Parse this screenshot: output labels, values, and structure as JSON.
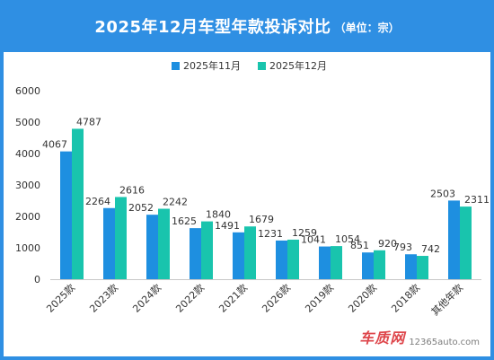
{
  "header": {
    "title": "2025年12月车型年款投诉对比",
    "unit": "（单位：宗）"
  },
  "colors": {
    "nov": "#1e8fe0",
    "dec": "#19c4ad",
    "header_bg": "#2f8fe3"
  },
  "watermark": {
    "logo": "车质网",
    "site": "12365auto.com"
  },
  "chart_data": {
    "type": "bar",
    "categories": [
      "2025款",
      "2023款",
      "2024款",
      "2022款",
      "2021款",
      "2026款",
      "2019款",
      "2020款",
      "2018款",
      "其他年款"
    ],
    "series": [
      {
        "name": "2025年11月",
        "values": [
          4067,
          2264,
          2052,
          1625,
          1491,
          1231,
          1041,
          851,
          793,
          2503
        ]
      },
      {
        "name": "2025年12月",
        "values": [
          4787,
          2616,
          2242,
          1840,
          1679,
          1259,
          1054,
          920,
          742,
          2311
        ]
      }
    ],
    "ylim": [
      0,
      6000
    ],
    "yticks": [
      0,
      1000,
      2000,
      3000,
      4000,
      5000,
      6000
    ],
    "legend": "top-center",
    "grid": false,
    "xlabel": "",
    "ylabel": ""
  }
}
